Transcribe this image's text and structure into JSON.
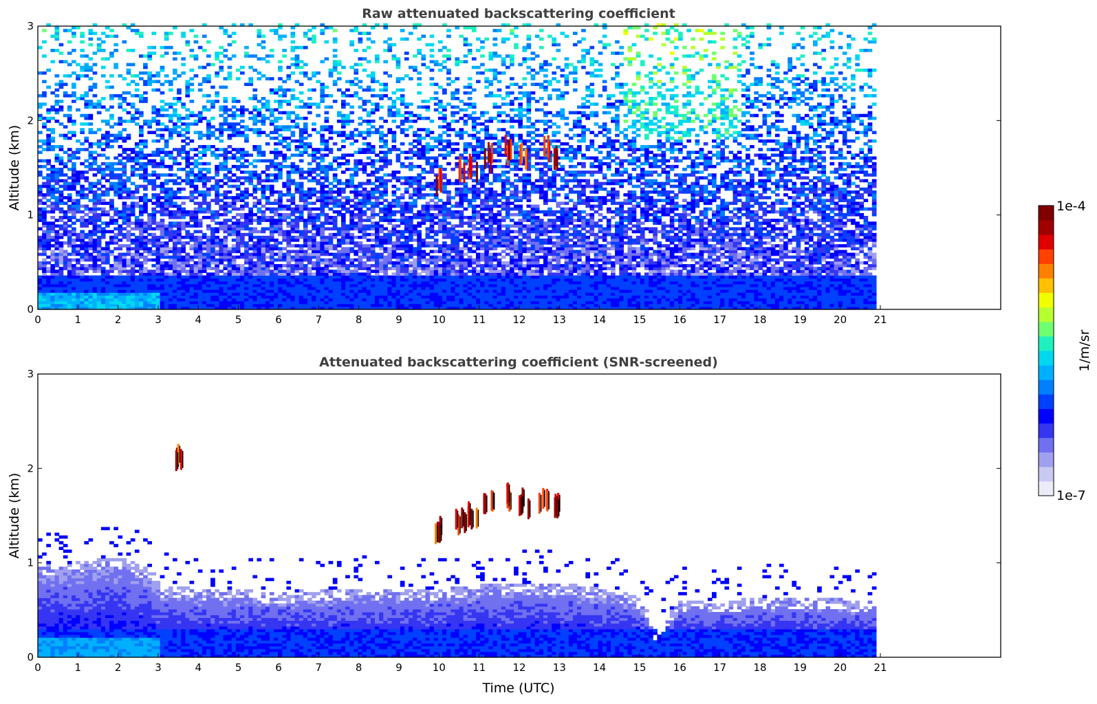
{
  "chart_data": [
    {
      "type": "heatmap",
      "title": "Raw attenuated backscattering coefficient",
      "xlabel": "",
      "ylabel": "Altitude (km)",
      "xlim": [
        0,
        24
      ],
      "ylim": [
        0,
        3
      ],
      "x_ticks": [
        "0",
        "1",
        "2",
        "3",
        "4",
        "5",
        "6",
        "7",
        "8",
        "9",
        "10",
        "11",
        "12",
        "13",
        "14",
        "15",
        "16",
        "17",
        "18",
        "19",
        "20",
        "21"
      ],
      "y_ticks": [
        "0",
        "1",
        "2",
        "3"
      ],
      "data_time_range": [
        0,
        20.8
      ],
      "screened": false,
      "cloud_features": [
        {
          "t": 10.0,
          "z": 1.32
        },
        {
          "t": 10.5,
          "z": 1.45
        },
        {
          "t": 10.8,
          "z": 1.5
        },
        {
          "t": 11.2,
          "z": 1.6
        },
        {
          "t": 11.7,
          "z": 1.68
        },
        {
          "t": 12.1,
          "z": 1.62
        },
        {
          "t": 12.6,
          "z": 1.68
        },
        {
          "t": 12.95,
          "z": 1.62
        }
      ]
    },
    {
      "type": "heatmap",
      "title": "Attenuated backscattering coefficient (SNR-screened)",
      "xlabel": "Time (UTC)",
      "ylabel": "Altitude (km)",
      "xlim": [
        0,
        24
      ],
      "ylim": [
        0,
        3
      ],
      "x_ticks": [
        "0",
        "1",
        "2",
        "3",
        "4",
        "5",
        "6",
        "7",
        "8",
        "9",
        "10",
        "11",
        "12",
        "13",
        "14",
        "15",
        "16",
        "17",
        "18",
        "19",
        "20",
        "21"
      ],
      "y_ticks": [
        "0",
        "1",
        "2",
        "3"
      ],
      "data_time_range": [
        0,
        20.8
      ],
      "screened": true,
      "boundary_layer_top_km": [
        {
          "t": 0,
          "z": 0.95
        },
        {
          "t": 1,
          "z": 1.0
        },
        {
          "t": 2,
          "z": 1.05
        },
        {
          "t": 2.8,
          "z": 0.9
        },
        {
          "t": 3,
          "z": 0.75
        },
        {
          "t": 4,
          "z": 0.72
        },
        {
          "t": 5,
          "z": 0.7
        },
        {
          "t": 6,
          "z": 0.68
        },
        {
          "t": 7,
          "z": 0.7
        },
        {
          "t": 8,
          "z": 0.72
        },
        {
          "t": 9,
          "z": 0.7
        },
        {
          "t": 10,
          "z": 0.72
        },
        {
          "t": 11,
          "z": 0.75
        },
        {
          "t": 12,
          "z": 0.78
        },
        {
          "t": 13,
          "z": 0.78
        },
        {
          "t": 14,
          "z": 0.72
        },
        {
          "t": 15,
          "z": 0.62
        },
        {
          "t": 15.3,
          "z": 0.28
        },
        {
          "t": 16,
          "z": 0.6
        },
        {
          "t": 17,
          "z": 0.58
        },
        {
          "t": 18,
          "z": 0.62
        },
        {
          "t": 19,
          "z": 0.62
        },
        {
          "t": 20,
          "z": 0.6
        },
        {
          "t": 20.8,
          "z": 0.58
        }
      ],
      "cloud_features": [
        {
          "t": 10.0,
          "z": 1.32
        },
        {
          "t": 10.5,
          "z": 1.45
        },
        {
          "t": 10.8,
          "z": 1.5
        },
        {
          "t": 11.2,
          "z": 1.6
        },
        {
          "t": 11.7,
          "z": 1.68
        },
        {
          "t": 12.1,
          "z": 1.62
        },
        {
          "t": 12.6,
          "z": 1.68
        },
        {
          "t": 12.95,
          "z": 1.62
        },
        {
          "t": 3.5,
          "z": 2.12
        }
      ]
    }
  ],
  "colorbar": {
    "label": "1/m/sr",
    "max_label": "1e-4",
    "min_label": "1e-7",
    "scale": "log",
    "range": [
      1e-07,
      0.0001
    ],
    "colormap": "jet",
    "colors": [
      "#ececf8",
      "#c9c9f2",
      "#a0a0ee",
      "#7070f0",
      "#3535f2",
      "#0000ff",
      "#0040ff",
      "#0080ff",
      "#00b0ff",
      "#00d8f0",
      "#20f0c0",
      "#70ff70",
      "#b8ff30",
      "#f0ff00",
      "#ffc000",
      "#ff8000",
      "#ff4000",
      "#e00000",
      "#a00000",
      "#800000"
    ]
  }
}
